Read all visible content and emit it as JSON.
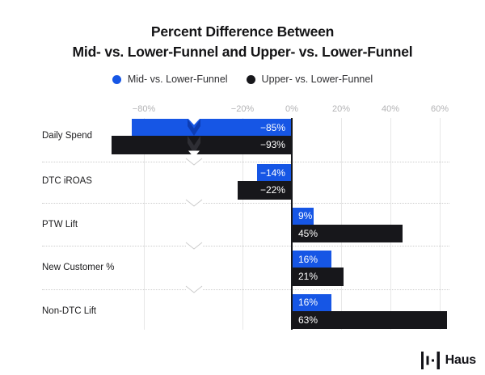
{
  "title": {
    "line1": "Percent Difference Between",
    "line2": "Mid- vs. Lower-Funnel and Upper- vs. Lower-Funnel"
  },
  "legend": {
    "items": [
      {
        "label": "Mid- vs. Lower-Funnel",
        "color": "#1656E5"
      },
      {
        "label": "Upper- vs. Lower-Funnel",
        "color": "#17171B"
      }
    ]
  },
  "footer": {
    "brand": "Haus",
    "icon": "haus-soundwave-icon"
  },
  "chart_data": {
    "type": "bar",
    "orientation": "horizontal",
    "title": "Percent Difference Between Mid- vs. Lower-Funnel and Upper- vs. Lower-Funnel",
    "categories": [
      "Daily Spend",
      "DTC iROAS",
      "PTW Lift",
      "New Customer %",
      "Non-DTC Lift"
    ],
    "series": [
      {
        "name": "Mid- vs. Lower-Funnel",
        "color": "#1656E5",
        "break_band_color": "#0D3DB4",
        "values": [
          -85,
          -14,
          9,
          16,
          16
        ]
      },
      {
        "name": "Upper- vs. Lower-Funnel",
        "color": "#17171B",
        "break_band_color": "#2E2E34",
        "values": [
          -93,
          -22,
          45,
          21,
          63
        ]
      }
    ],
    "value_labels": [
      [
        "−85%",
        "−14%",
        "9%",
        "16%",
        "16%"
      ],
      [
        "−93%",
        "−22%",
        "45%",
        "21%",
        "63%"
      ]
    ],
    "x_ticks": {
      "labels": [
        "−80%",
        "−20%",
        "0%",
        "20%",
        "40%",
        "60%"
      ],
      "values": [
        -80,
        -20,
        0,
        20,
        40,
        60
      ]
    },
    "axis_break": {
      "hidden_range": [
        -60,
        -40
      ]
    },
    "xlim": [
      -95,
      66
    ],
    "unit": "%",
    "grid": true,
    "legend_position": "top",
    "colors": {
      "grid_line": "#E7E7E7",
      "zero_line": "#17181B",
      "tick_label": "#B3B3B5",
      "category_label": "#1B1B1D",
      "separator": "#CCCCCC",
      "value_label": "#FFFFFF"
    }
  }
}
